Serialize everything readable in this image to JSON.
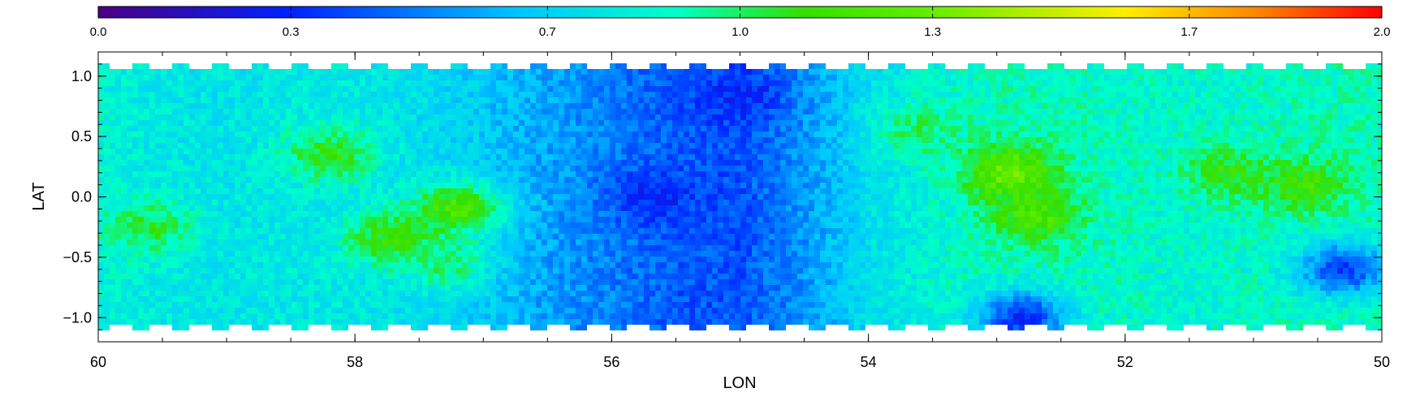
{
  "chart_data": {
    "type": "heatmap",
    "title": "",
    "xlabel": "LON",
    "ylabel": "LAT",
    "xlim": [
      60,
      50
    ],
    "ylim": [
      -1.2,
      1.2
    ],
    "x_ticks": [
      60,
      58,
      56,
      54,
      52,
      50
    ],
    "y_ticks": [
      -1.0,
      -0.5,
      0.0,
      0.5,
      1.0
    ],
    "x_tick_labels": [
      "60",
      "58",
      "56",
      "54",
      "52",
      "50"
    ],
    "y_tick_labels": [
      "−1.0",
      "−0.5",
      "0.0",
      "0.5",
      "1.0"
    ],
    "colorbar": {
      "range": [
        0.0,
        2.0
      ],
      "ticks": [
        0.0,
        0.3,
        0.7,
        1.0,
        1.3,
        1.7,
        2.0
      ],
      "tick_labels": [
        "0.0",
        "0.3",
        "0.7",
        "1.0",
        "1.3",
        "1.7",
        "2.0"
      ],
      "colormap": "rainbow (purple-blue-cyan-green-yellow-red)"
    },
    "grid": false,
    "lon_profile": {
      "lon": [
        60,
        59.5,
        59,
        58.5,
        58,
        57.5,
        57,
        56.5,
        56,
        55.5,
        55,
        54.5,
        54,
        53.5,
        53,
        52.5,
        52,
        51.5,
        51,
        50.5,
        50
      ],
      "mean_value": [
        0.85,
        0.8,
        0.78,
        0.8,
        0.8,
        0.75,
        0.68,
        0.58,
        0.5,
        0.42,
        0.4,
        0.55,
        0.75,
        0.85,
        0.9,
        0.9,
        0.88,
        0.86,
        0.88,
        0.9,
        0.9
      ]
    },
    "features": [
      {
        "lon": 59.6,
        "lat": -0.25,
        "value": 1.05
      },
      {
        "lon": 58.2,
        "lat": 0.35,
        "value": 1.1
      },
      {
        "lon": 57.7,
        "lat": -0.35,
        "value": 1.15
      },
      {
        "lon": 57.2,
        "lat": -0.1,
        "value": 1.2
      },
      {
        "lon": 57.3,
        "lat": -0.55,
        "value": 1.0
      },
      {
        "lon": 55.7,
        "lat": 0.0,
        "value": 0.3
      },
      {
        "lon": 55.0,
        "lat": 0.85,
        "value": 0.3
      },
      {
        "lon": 53.6,
        "lat": 0.55,
        "value": 1.0
      },
      {
        "lon": 52.9,
        "lat": 0.2,
        "value": 1.3
      },
      {
        "lon": 52.7,
        "lat": -0.15,
        "value": 1.2
      },
      {
        "lon": 51.2,
        "lat": 0.2,
        "value": 1.1
      },
      {
        "lon": 50.6,
        "lat": 0.1,
        "value": 1.15
      },
      {
        "lon": 52.8,
        "lat": -1.0,
        "value": 0.3
      },
      {
        "lon": 50.3,
        "lat": -0.6,
        "value": 0.35
      }
    ]
  },
  "colors": {
    "low": "#4b0082",
    "mid_low": "#1a3cf0",
    "mid": "#00ffff",
    "mid_high": "#33e000",
    "high_yellow": "#ffff00",
    "high": "#ff0000"
  }
}
